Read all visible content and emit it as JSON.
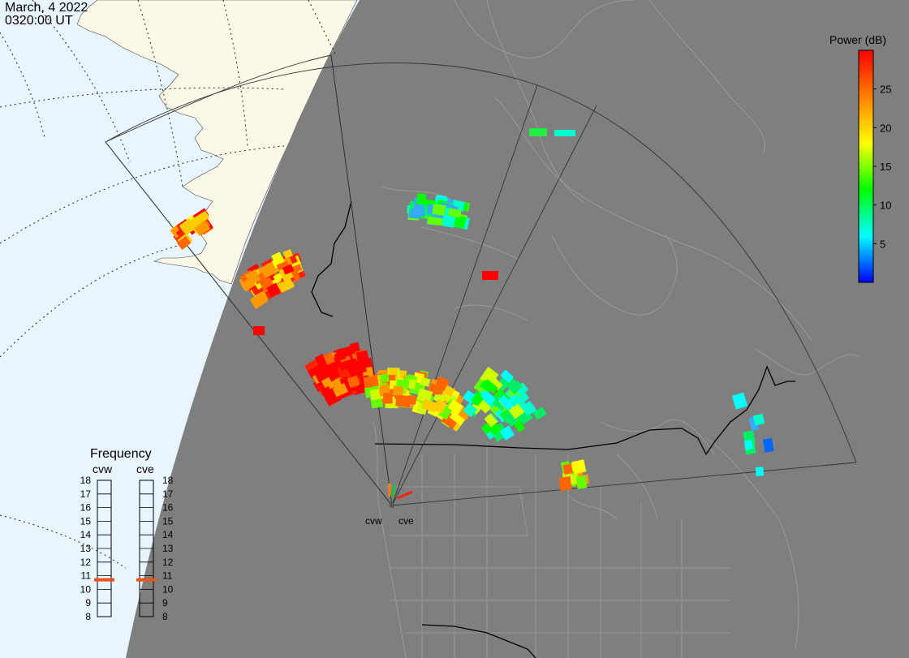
{
  "header": {
    "date": "March, 4 2022",
    "time": "0320:00 UT"
  },
  "colorbar": {
    "title": "Power (dB)",
    "min": 0,
    "max": 30,
    "ticks": [
      5,
      10,
      15,
      20,
      25
    ],
    "tick_labels": [
      "5",
      "10",
      "15",
      "20",
      "25"
    ],
    "stops": [
      "#0000ff",
      "#00ffff",
      "#00ff00",
      "#ffff00",
      "#ff8000",
      "#ff0000"
    ]
  },
  "radars": {
    "cvw": {
      "label": "cvw"
    },
    "cve": {
      "label": "cve"
    }
  },
  "frequency": {
    "title": "Frequency",
    "radars": [
      "cvw",
      "cve"
    ],
    "min": 8,
    "max": 18,
    "labels": [
      "18",
      "17",
      "16",
      "15",
      "14",
      "13",
      "12",
      "11",
      "10",
      "9",
      "8"
    ],
    "values": {
      "cvw": 10.7,
      "cve": 10.7
    },
    "marker_color": "#e8541a"
  },
  "colors": {
    "land": "#808080",
    "night": "#7f7f7f",
    "ocean_day": "#e8f5ff",
    "land_day": "#fbf8e8",
    "coast": "#9a9a9a",
    "border": "#000000"
  }
}
